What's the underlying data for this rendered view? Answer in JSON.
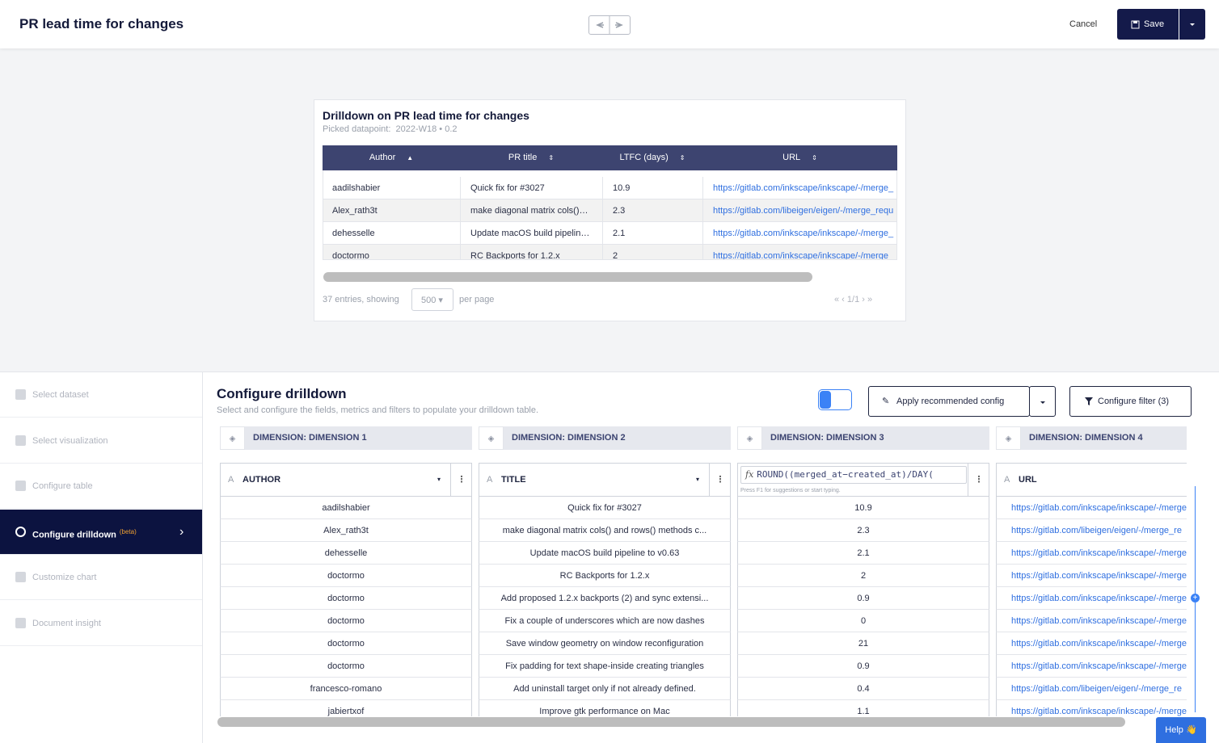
{
  "header": {
    "title": "PR lead time for changes",
    "cancel": "Cancel",
    "save": "Save"
  },
  "preview": {
    "title": "Drilldown on PR lead time for changes",
    "subtitle": "Picked datapoint:  2022-W18 • 0.2",
    "columns": [
      "Author",
      "PR title",
      "LTFC (days)",
      "URL"
    ],
    "rows": [
      [
        "aadilshabier",
        "Quick fix for #3027",
        "10.9",
        "https://gitlab.com/inkscape/inkscape/-/merge_"
      ],
      [
        "Alex_rath3t",
        "make diagonal matrix cols()…",
        "2.3",
        "https://gitlab.com/libeigen/eigen/-/merge_requ"
      ],
      [
        "dehesselle",
        "Update macOS build pipelin…",
        "2.1",
        "https://gitlab.com/inkscape/inkscape/-/merge_"
      ],
      [
        "doctormo",
        "RC Backports for 1.2.x",
        "2",
        "https://gitlab.com/inkscape/inkscape/-/merge"
      ]
    ],
    "entries": "37 entries, showing",
    "page_size": "500",
    "per_page": "per page",
    "pagination": "1/1"
  },
  "sidebar": {
    "steps": [
      "Select dataset",
      "Select visualization",
      "Configure table",
      "Configure drilldown",
      "Customize chart",
      "Document insight"
    ],
    "active_badge": "(beta)"
  },
  "config": {
    "title": "Configure drilldown",
    "subtitle": "Select and configure the fields, metrics and filters to populate your drilldown table.",
    "apply_button": "Apply recommended config",
    "filter_button": "Configure filter (3)",
    "dimensions": [
      "DIMENSION: DIMENSION 1",
      "DIMENSION: DIMENSION 2",
      "DIMENSION: DIMENSION 3",
      "DIMENSION: DIMENSION 4"
    ],
    "fields": [
      "AUTHOR",
      "TITLE",
      "ROUND((merged_at−created_at)/DAY(",
      "URL"
    ],
    "formula_icon": "fx",
    "formula_hint": "Press F1 for suggestions or start typing.",
    "rows": [
      [
        "aadilshabier",
        "Quick fix for #3027",
        "10.9",
        "https://gitlab.com/inkscape/inkscape/-/merge"
      ],
      [
        "Alex_rath3t",
        "make diagonal matrix cols() and rows() methods c...",
        "2.3",
        "https://gitlab.com/libeigen/eigen/-/merge_re"
      ],
      [
        "dehesselle",
        "Update macOS build pipeline to v0.63",
        "2.1",
        "https://gitlab.com/inkscape/inkscape/-/merge"
      ],
      [
        "doctormo",
        "RC Backports for 1.2.x",
        "2",
        "https://gitlab.com/inkscape/inkscape/-/merge"
      ],
      [
        "doctormo",
        "Add proposed 1.2.x backports (2) and sync extensi...",
        "0.9",
        "https://gitlab.com/inkscape/inkscape/-/merge"
      ],
      [
        "doctormo",
        "Fix a couple of underscores which are now dashes",
        "0",
        "https://gitlab.com/inkscape/inkscape/-/merge"
      ],
      [
        "doctormo",
        "Save window geometry on window reconfiguration",
        "21",
        "https://gitlab.com/inkscape/inkscape/-/merge"
      ],
      [
        "doctormo",
        "Fix padding for text shape-inside creating triangles",
        "0.9",
        "https://gitlab.com/inkscape/inkscape/-/merge"
      ],
      [
        "francesco-romano",
        "Add uninstall target only if not already defined.",
        "0.4",
        "https://gitlab.com/libeigen/eigen/-/merge_re"
      ],
      [
        "jabiertxof",
        "Improve gtk performance on Mac",
        "1.1",
        "https://gitlab.com/inkscape/inkscape/-/merge"
      ]
    ]
  },
  "help": "Help 👋"
}
